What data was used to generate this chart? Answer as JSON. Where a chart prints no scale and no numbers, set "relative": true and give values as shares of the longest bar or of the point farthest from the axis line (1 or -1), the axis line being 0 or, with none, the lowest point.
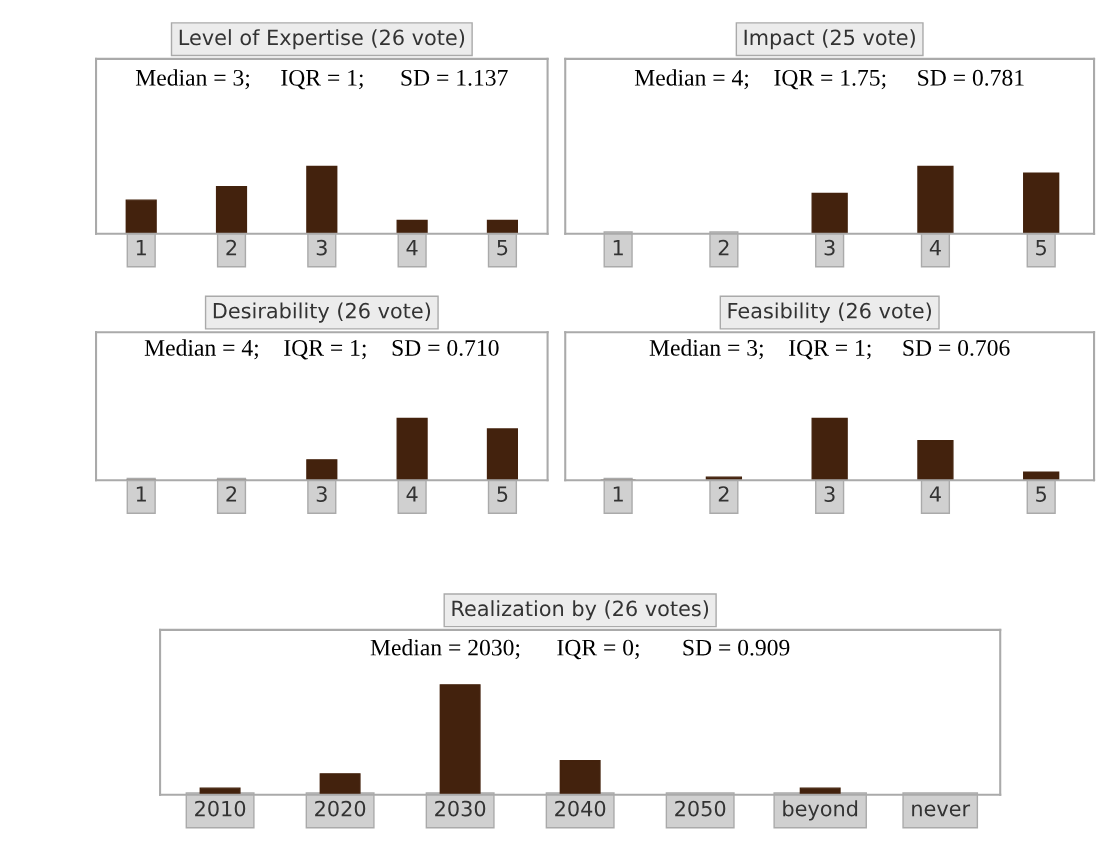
{
  "chart_data": [
    {
      "type": "bar",
      "title": "Level of Expertise (26 vote)",
      "annotations": [
        "Median = 3;     IQR = 1;      SD = 1.137"
      ],
      "categories": [
        "1",
        "2",
        "3",
        "4",
        "5"
      ],
      "values": [
        0.5,
        0.7,
        1,
        0.2,
        0.2
      ],
      "color": "#43220d",
      "relative": true,
      "tick_labels": "x"
    },
    {
      "type": "bar",
      "title": "Impact (25 vote)",
      "annotations": [
        "Median = 4;    IQR = 1.75;     SD = 0.781"
      ],
      "categories": [
        "1",
        "2",
        "3",
        "4",
        "5"
      ],
      "values": [
        0,
        0,
        0.6,
        1,
        0.9
      ],
      "color": "#43220d",
      "relative": true,
      "tick_labels": "x"
    },
    {
      "type": "bar",
      "title": "Desirability (26 vote)",
      "annotations": [
        "Median = 4;    IQR = 1;    SD = 0.710"
      ],
      "categories": [
        "1",
        "2",
        "3",
        "4",
        "5"
      ],
      "values": [
        0,
        0,
        0.33,
        1,
        0.83
      ],
      "color": "#43220d",
      "relative": true,
      "tick_labels": "x"
    },
    {
      "type": "bar",
      "title": "Feasibility (26 vote)",
      "annotations": [
        "Median = 3;    IQR = 1;     SD = 0.706"
      ],
      "categories": [
        "1",
        "2",
        "3",
        "4",
        "5"
      ],
      "values": [
        0,
        0.05,
        1,
        0.64,
        0.13
      ],
      "color": "#43220d",
      "relative": true,
      "tick_labels": "x"
    },
    {
      "type": "bar",
      "title": "Realization by (26 votes)",
      "annotations": [
        "Median = 2030;      IQR = 0;       SD = 0.909"
      ],
      "categories": [
        "2010",
        "2020",
        "2030",
        "2040",
        "2050",
        "beyond",
        "never"
      ],
      "values": [
        0.06,
        0.19,
        1,
        0.31,
        0,
        0.06,
        0
      ],
      "color": "#43220d",
      "relative": true,
      "tick_labels": "x"
    }
  ]
}
